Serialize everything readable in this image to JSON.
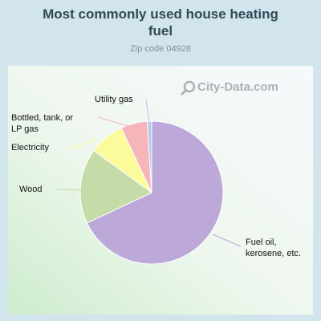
{
  "chart_data": {
    "type": "pie",
    "title_lines": [
      "Most commonly used house heating",
      "fuel"
    ],
    "subtitle": "Zip code 04928",
    "slices": [
      {
        "label": "Fuel oil, kerosene, etc.",
        "value": 68.0,
        "color": "#bca9da"
      },
      {
        "label": "Wood",
        "value": 17.0,
        "color": "#c5dba8"
      },
      {
        "label": "Electricity",
        "value": 8.0,
        "color": "#fbfb9b"
      },
      {
        "label": "Bottled, tank, or LP gas",
        "value": 6.0,
        "color": "#f6b6b9"
      },
      {
        "label": "Utility gas",
        "value": 1.0,
        "color": "#b7c8f0"
      }
    ]
  },
  "watermark": {
    "text": "City-Data.com",
    "icon": "search-icon"
  }
}
